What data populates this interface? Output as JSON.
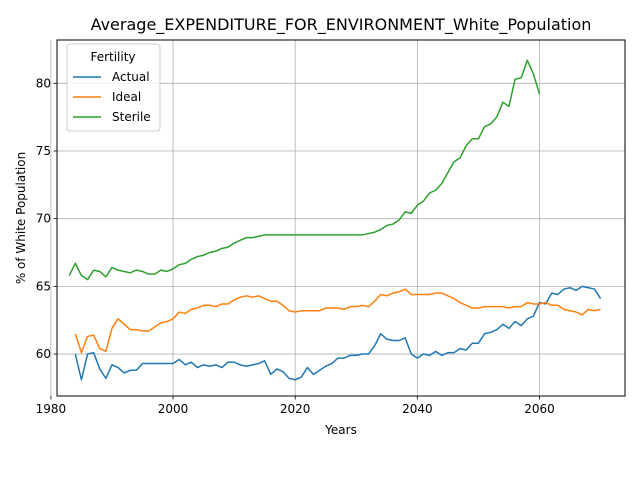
{
  "chart_data": {
    "type": "line",
    "title": "Average_EXPENDITURE_FOR_ENVIRONMENT_White_Population",
    "xlabel": "Years",
    "ylabel": "% of White Population",
    "xlim": [
      1981,
      2074
    ],
    "ylim": [
      56.9,
      83.2
    ],
    "xticks": [
      1980,
      2000,
      2020,
      2040,
      2060
    ],
    "yticks": [
      60,
      65,
      70,
      75,
      80
    ],
    "grid": true,
    "legend": {
      "title": "Fertility",
      "placement": "top-left"
    },
    "series": [
      {
        "name": "Actual",
        "color": "#1f77b4",
        "x": [
          1984,
          1985,
          1986,
          1987,
          1988,
          1989,
          1990,
          1991,
          1992,
          1993,
          1994,
          1995,
          1996,
          1997,
          1998,
          1999,
          2000,
          2001,
          2002,
          2003,
          2004,
          2005,
          2006,
          2007,
          2008,
          2009,
          2010,
          2011,
          2012,
          2013,
          2014,
          2015,
          2016,
          2017,
          2018,
          2019,
          2020,
          2021,
          2022,
          2023,
          2024,
          2025,
          2026,
          2027,
          2028,
          2029,
          2030,
          2031,
          2032,
          2033,
          2034,
          2035,
          2036,
          2037,
          2038,
          2039,
          2040,
          2041,
          2042,
          2043,
          2044,
          2045,
          2046,
          2047,
          2048,
          2049,
          2050,
          2051,
          2052,
          2053,
          2054,
          2055,
          2056,
          2057,
          2058,
          2059,
          2060,
          2061,
          2062,
          2063,
          2064,
          2065,
          2066,
          2067,
          2068,
          2069,
          2070
        ],
        "y": [
          60.0,
          58.1,
          60.0,
          60.1,
          58.9,
          58.2,
          59.2,
          59.0,
          58.6,
          58.8,
          58.8,
          59.3,
          59.3,
          59.3,
          59.3,
          59.3,
          59.3,
          59.6,
          59.2,
          59.4,
          59.0,
          59.2,
          59.1,
          59.2,
          59.0,
          59.4,
          59.4,
          59.2,
          59.1,
          59.2,
          59.3,
          59.5,
          58.5,
          58.9,
          58.7,
          58.2,
          58.1,
          58.3,
          59.0,
          58.5,
          58.8,
          59.1,
          59.3,
          59.7,
          59.7,
          59.9,
          59.9,
          60.0,
          60.0,
          60.6,
          61.5,
          61.1,
          61.0,
          61.0,
          61.2,
          60.0,
          59.7,
          60.0,
          59.9,
          60.2,
          59.9,
          60.1,
          60.1,
          60.4,
          60.3,
          60.8,
          60.8,
          61.5,
          61.6,
          61.8,
          62.2,
          61.9,
          62.4,
          62.1,
          62.6,
          62.8,
          63.8,
          63.7,
          64.5,
          64.4,
          64.8,
          64.9,
          64.7,
          65.0,
          64.9,
          64.8,
          64.1
        ]
      },
      {
        "name": "Ideal",
        "color": "#ff7f0e",
        "x": [
          1984,
          1985,
          1986,
          1987,
          1988,
          1989,
          1990,
          1991,
          1992,
          1993,
          1994,
          1995,
          1996,
          1997,
          1998,
          1999,
          2000,
          2001,
          2002,
          2003,
          2004,
          2005,
          2006,
          2007,
          2008,
          2009,
          2010,
          2011,
          2012,
          2013,
          2014,
          2015,
          2016,
          2017,
          2018,
          2019,
          2020,
          2021,
          2022,
          2023,
          2024,
          2025,
          2026,
          2027,
          2028,
          2029,
          2030,
          2031,
          2032,
          2033,
          2034,
          2035,
          2036,
          2037,
          2038,
          2039,
          2040,
          2041,
          2042,
          2043,
          2044,
          2045,
          2046,
          2047,
          2048,
          2049,
          2050,
          2051,
          2052,
          2053,
          2054,
          2055,
          2056,
          2057,
          2058,
          2059,
          2060,
          2061,
          2062,
          2063,
          2064,
          2065,
          2066,
          2067,
          2068,
          2069,
          2070
        ],
        "y": [
          61.5,
          60.1,
          61.3,
          61.4,
          60.4,
          60.2,
          61.9,
          62.6,
          62.2,
          61.8,
          61.8,
          61.7,
          61.7,
          62.0,
          62.3,
          62.4,
          62.6,
          63.1,
          63.0,
          63.3,
          63.4,
          63.6,
          63.6,
          63.5,
          63.7,
          63.7,
          64.0,
          64.2,
          64.3,
          64.2,
          64.3,
          64.1,
          63.9,
          63.9,
          63.6,
          63.2,
          63.1,
          63.2,
          63.2,
          63.2,
          63.2,
          63.4,
          63.4,
          63.4,
          63.3,
          63.5,
          63.5,
          63.6,
          63.5,
          63.9,
          64.4,
          64.3,
          64.5,
          64.6,
          64.8,
          64.4,
          64.4,
          64.4,
          64.4,
          64.5,
          64.5,
          64.3,
          64.1,
          63.8,
          63.6,
          63.4,
          63.4,
          63.5,
          63.5,
          63.5,
          63.5,
          63.4,
          63.5,
          63.5,
          63.8,
          63.7,
          63.7,
          63.8,
          63.6,
          63.6,
          63.3,
          63.2,
          63.1,
          62.9,
          63.3,
          63.2,
          63.3
        ]
      },
      {
        "name": "Sterile",
        "color": "#2ca02c",
        "x": [
          1983,
          1984,
          1985,
          1986,
          1987,
          1988,
          1989,
          1990,
          1991,
          1992,
          1993,
          1994,
          1995,
          1996,
          1997,
          1998,
          1999,
          2000,
          2001,
          2002,
          2003,
          2004,
          2005,
          2006,
          2007,
          2008,
          2009,
          2010,
          2011,
          2012,
          2013,
          2014,
          2015,
          2016,
          2017,
          2018,
          2019,
          2020,
          2021,
          2022,
          2023,
          2024,
          2025,
          2026,
          2027,
          2028,
          2029,
          2030,
          2031,
          2032,
          2033,
          2034,
          2035,
          2036,
          2037,
          2038,
          2039,
          2040,
          2041,
          2042,
          2043,
          2044,
          2045,
          2046,
          2047,
          2048,
          2049,
          2050,
          2051,
          2052,
          2053,
          2054,
          2055,
          2056,
          2057,
          2058,
          2059,
          2060
        ],
        "y": [
          65.8,
          66.7,
          65.8,
          65.5,
          66.2,
          66.1,
          65.7,
          66.4,
          66.2,
          66.1,
          66.0,
          66.2,
          66.1,
          65.9,
          65.9,
          66.2,
          66.1,
          66.3,
          66.6,
          66.7,
          67.0,
          67.2,
          67.3,
          67.5,
          67.6,
          67.8,
          67.9,
          68.2,
          68.4,
          68.6,
          68.6,
          68.7,
          68.8,
          68.8,
          68.8,
          68.8,
          68.8,
          68.8,
          68.8,
          68.8,
          68.8,
          68.8,
          68.8,
          68.8,
          68.8,
          68.8,
          68.8,
          68.8,
          68.8,
          68.9,
          69.0,
          69.2,
          69.5,
          69.6,
          69.9,
          70.5,
          70.4,
          71.0,
          71.3,
          71.9,
          72.1,
          72.6,
          73.4,
          74.2,
          74.5,
          75.4,
          75.9,
          75.9,
          76.8,
          77.0,
          77.5,
          78.6,
          78.3,
          80.3,
          80.4,
          81.7,
          80.7,
          79.2
        ]
      }
    ]
  }
}
